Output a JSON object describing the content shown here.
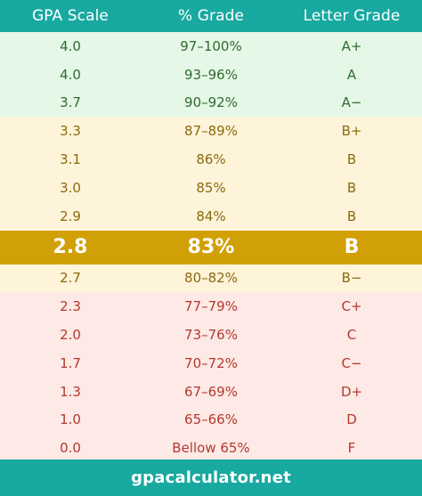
{
  "header": {
    "gpa": "GPA Scale",
    "percent": "% Grade",
    "letter": "Letter Grade"
  },
  "colors": {
    "header": "#18a9a0",
    "green": "#e5f7e7",
    "yellow": "#fdf4d9",
    "red": "#fde9e6",
    "highlight": "#d1a006"
  },
  "rows": [
    {
      "gpa": "4.0",
      "percent": "97–100%",
      "letter": "A+",
      "band": "green"
    },
    {
      "gpa": "4.0",
      "percent": "93–96%",
      "letter": "A",
      "band": "green"
    },
    {
      "gpa": "3.7",
      "percent": "90–92%",
      "letter": "A−",
      "band": "green"
    },
    {
      "gpa": "3.3",
      "percent": "87–89%",
      "letter": "B+",
      "band": "yellow"
    },
    {
      "gpa": "3.1",
      "percent": "86%",
      "letter": "B",
      "band": "yellow"
    },
    {
      "gpa": "3.0",
      "percent": "85%",
      "letter": "B",
      "band": "yellow"
    },
    {
      "gpa": "2.9",
      "percent": "84%",
      "letter": "B",
      "band": "yellow"
    },
    {
      "gpa": "2.8",
      "percent": "83%",
      "letter": "B",
      "band": "highlight"
    },
    {
      "gpa": "2.7",
      "percent": "80–82%",
      "letter": "B−",
      "band": "yellow"
    },
    {
      "gpa": "2.3",
      "percent": "77–79%",
      "letter": "C+",
      "band": "red"
    },
    {
      "gpa": "2.0",
      "percent": "73–76%",
      "letter": "C",
      "band": "red"
    },
    {
      "gpa": "1.7",
      "percent": "70–72%",
      "letter": "C−",
      "band": "red"
    },
    {
      "gpa": "1.3",
      "percent": "67–69%",
      "letter": "D+",
      "band": "red"
    },
    {
      "gpa": "1.0",
      "percent": "65–66%",
      "letter": "D",
      "band": "red"
    },
    {
      "gpa": "0.0",
      "percent": "Bellow 65%",
      "letter": "F",
      "band": "red"
    }
  ],
  "footer": {
    "site": "gpacalculator.net"
  }
}
